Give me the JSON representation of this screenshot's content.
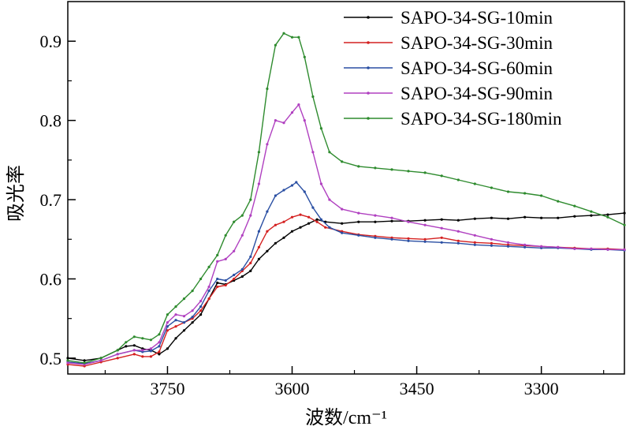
{
  "chart_data": {
    "type": "line",
    "title": "",
    "xlabel": "波数/cm⁻¹",
    "ylabel": "吸光率",
    "x_reversed": true,
    "xlim": [
      3870,
      3200
    ],
    "ylim": [
      0.48,
      0.95
    ],
    "x_ticks": [
      3750,
      3600,
      3450,
      3300
    ],
    "x_tick_labels": [
      "3750",
      "3600",
      "3450",
      "3300"
    ],
    "y_ticks": [
      0.5,
      0.6,
      0.7,
      0.8,
      0.9
    ],
    "y_tick_labels": [
      "0.5",
      "0.6",
      "0.7",
      "0.8",
      "0.9"
    ],
    "legend_position": "top-right",
    "series": [
      {
        "name": "SAPO-34-SG-10min",
        "color": "#000000",
        "points": [
          [
            3870,
            0.5
          ],
          [
            3850,
            0.497
          ],
          [
            3830,
            0.5
          ],
          [
            3810,
            0.51
          ],
          [
            3800,
            0.515
          ],
          [
            3790,
            0.516
          ],
          [
            3780,
            0.512
          ],
          [
            3770,
            0.51
          ],
          [
            3760,
            0.505
          ],
          [
            3750,
            0.512
          ],
          [
            3740,
            0.525
          ],
          [
            3730,
            0.535
          ],
          [
            3720,
            0.545
          ],
          [
            3710,
            0.555
          ],
          [
            3700,
            0.575
          ],
          [
            3690,
            0.595
          ],
          [
            3680,
            0.593
          ],
          [
            3670,
            0.598
          ],
          [
            3660,
            0.603
          ],
          [
            3650,
            0.61
          ],
          [
            3640,
            0.625
          ],
          [
            3630,
            0.635
          ],
          [
            3620,
            0.645
          ],
          [
            3610,
            0.652
          ],
          [
            3600,
            0.66
          ],
          [
            3590,
            0.665
          ],
          [
            3580,
            0.67
          ],
          [
            3570,
            0.675
          ],
          [
            3560,
            0.672
          ],
          [
            3540,
            0.67
          ],
          [
            3520,
            0.672
          ],
          [
            3500,
            0.672
          ],
          [
            3480,
            0.673
          ],
          [
            3460,
            0.673
          ],
          [
            3440,
            0.674
          ],
          [
            3420,
            0.675
          ],
          [
            3400,
            0.674
          ],
          [
            3380,
            0.676
          ],
          [
            3360,
            0.677
          ],
          [
            3340,
            0.676
          ],
          [
            3320,
            0.678
          ],
          [
            3300,
            0.677
          ],
          [
            3280,
            0.677
          ],
          [
            3260,
            0.679
          ],
          [
            3240,
            0.68
          ],
          [
            3220,
            0.681
          ],
          [
            3200,
            0.683
          ]
        ]
      },
      {
        "name": "SAPO-34-SG-30min",
        "color": "#d42020",
        "points": [
          [
            3870,
            0.492
          ],
          [
            3850,
            0.49
          ],
          [
            3830,
            0.495
          ],
          [
            3810,
            0.5
          ],
          [
            3790,
            0.505
          ],
          [
            3780,
            0.502
          ],
          [
            3770,
            0.502
          ],
          [
            3760,
            0.508
          ],
          [
            3750,
            0.535
          ],
          [
            3740,
            0.54
          ],
          [
            3730,
            0.545
          ],
          [
            3720,
            0.55
          ],
          [
            3710,
            0.56
          ],
          [
            3700,
            0.575
          ],
          [
            3690,
            0.59
          ],
          [
            3680,
            0.592
          ],
          [
            3670,
            0.6
          ],
          [
            3660,
            0.61
          ],
          [
            3650,
            0.62
          ],
          [
            3640,
            0.64
          ],
          [
            3630,
            0.66
          ],
          [
            3620,
            0.668
          ],
          [
            3610,
            0.672
          ],
          [
            3600,
            0.678
          ],
          [
            3590,
            0.681
          ],
          [
            3580,
            0.678
          ],
          [
            3570,
            0.672
          ],
          [
            3560,
            0.665
          ],
          [
            3540,
            0.66
          ],
          [
            3520,
            0.656
          ],
          [
            3500,
            0.654
          ],
          [
            3480,
            0.652
          ],
          [
            3460,
            0.651
          ],
          [
            3440,
            0.65
          ],
          [
            3420,
            0.652
          ],
          [
            3400,
            0.648
          ],
          [
            3380,
            0.646
          ],
          [
            3360,
            0.645
          ],
          [
            3340,
            0.643
          ],
          [
            3320,
            0.642
          ],
          [
            3300,
            0.641
          ],
          [
            3280,
            0.64
          ],
          [
            3260,
            0.639
          ],
          [
            3240,
            0.638
          ],
          [
            3220,
            0.638
          ],
          [
            3200,
            0.637
          ]
        ]
      },
      {
        "name": "SAPO-34-SG-60min",
        "color": "#2a4fa3",
        "points": [
          [
            3870,
            0.495
          ],
          [
            3850,
            0.493
          ],
          [
            3830,
            0.497
          ],
          [
            3810,
            0.505
          ],
          [
            3790,
            0.51
          ],
          [
            3780,
            0.508
          ],
          [
            3770,
            0.509
          ],
          [
            3760,
            0.515
          ],
          [
            3750,
            0.54
          ],
          [
            3740,
            0.548
          ],
          [
            3730,
            0.545
          ],
          [
            3720,
            0.552
          ],
          [
            3710,
            0.565
          ],
          [
            3700,
            0.585
          ],
          [
            3690,
            0.6
          ],
          [
            3680,
            0.598
          ],
          [
            3670,
            0.605
          ],
          [
            3660,
            0.612
          ],
          [
            3650,
            0.628
          ],
          [
            3640,
            0.66
          ],
          [
            3630,
            0.685
          ],
          [
            3620,
            0.705
          ],
          [
            3610,
            0.712
          ],
          [
            3600,
            0.718
          ],
          [
            3595,
            0.722
          ],
          [
            3585,
            0.71
          ],
          [
            3575,
            0.69
          ],
          [
            3565,
            0.675
          ],
          [
            3555,
            0.665
          ],
          [
            3540,
            0.658
          ],
          [
            3520,
            0.655
          ],
          [
            3500,
            0.652
          ],
          [
            3480,
            0.65
          ],
          [
            3460,
            0.648
          ],
          [
            3440,
            0.647
          ],
          [
            3420,
            0.646
          ],
          [
            3400,
            0.645
          ],
          [
            3380,
            0.643
          ],
          [
            3360,
            0.642
          ],
          [
            3340,
            0.641
          ],
          [
            3320,
            0.64
          ],
          [
            3300,
            0.639
          ],
          [
            3280,
            0.639
          ],
          [
            3260,
            0.638
          ],
          [
            3240,
            0.637
          ],
          [
            3220,
            0.637
          ],
          [
            3200,
            0.636
          ]
        ]
      },
      {
        "name": "SAPO-34-SG-90min",
        "color": "#b040c0",
        "points": [
          [
            3870,
            0.494
          ],
          [
            3850,
            0.492
          ],
          [
            3830,
            0.497
          ],
          [
            3810,
            0.505
          ],
          [
            3790,
            0.51
          ],
          [
            3780,
            0.51
          ],
          [
            3770,
            0.512
          ],
          [
            3760,
            0.52
          ],
          [
            3750,
            0.545
          ],
          [
            3740,
            0.555
          ],
          [
            3730,
            0.553
          ],
          [
            3720,
            0.56
          ],
          [
            3710,
            0.572
          ],
          [
            3700,
            0.59
          ],
          [
            3690,
            0.622
          ],
          [
            3680,
            0.625
          ],
          [
            3670,
            0.635
          ],
          [
            3660,
            0.655
          ],
          [
            3650,
            0.68
          ],
          [
            3640,
            0.72
          ],
          [
            3630,
            0.77
          ],
          [
            3620,
            0.8
          ],
          [
            3610,
            0.797
          ],
          [
            3600,
            0.81
          ],
          [
            3592,
            0.82
          ],
          [
            3585,
            0.8
          ],
          [
            3575,
            0.76
          ],
          [
            3565,
            0.72
          ],
          [
            3555,
            0.7
          ],
          [
            3540,
            0.688
          ],
          [
            3520,
            0.683
          ],
          [
            3500,
            0.68
          ],
          [
            3480,
            0.677
          ],
          [
            3460,
            0.672
          ],
          [
            3440,
            0.668
          ],
          [
            3420,
            0.664
          ],
          [
            3400,
            0.66
          ],
          [
            3380,
            0.655
          ],
          [
            3360,
            0.65
          ],
          [
            3340,
            0.646
          ],
          [
            3320,
            0.643
          ],
          [
            3300,
            0.641
          ],
          [
            3280,
            0.64
          ],
          [
            3260,
            0.638
          ],
          [
            3240,
            0.638
          ],
          [
            3220,
            0.637
          ],
          [
            3200,
            0.637
          ]
        ]
      },
      {
        "name": "SAPO-34-SG-180min",
        "color": "#2e8b2e",
        "points": [
          [
            3870,
            0.497
          ],
          [
            3850,
            0.494
          ],
          [
            3830,
            0.5
          ],
          [
            3810,
            0.51
          ],
          [
            3800,
            0.52
          ],
          [
            3790,
            0.527
          ],
          [
            3780,
            0.525
          ],
          [
            3770,
            0.523
          ],
          [
            3760,
            0.53
          ],
          [
            3750,
            0.555
          ],
          [
            3740,
            0.565
          ],
          [
            3730,
            0.575
          ],
          [
            3720,
            0.585
          ],
          [
            3710,
            0.6
          ],
          [
            3700,
            0.615
          ],
          [
            3690,
            0.63
          ],
          [
            3680,
            0.655
          ],
          [
            3670,
            0.672
          ],
          [
            3660,
            0.68
          ],
          [
            3650,
            0.7
          ],
          [
            3640,
            0.76
          ],
          [
            3630,
            0.84
          ],
          [
            3620,
            0.895
          ],
          [
            3610,
            0.91
          ],
          [
            3600,
            0.905
          ],
          [
            3592,
            0.905
          ],
          [
            3585,
            0.88
          ],
          [
            3575,
            0.83
          ],
          [
            3565,
            0.79
          ],
          [
            3555,
            0.76
          ],
          [
            3540,
            0.748
          ],
          [
            3520,
            0.742
          ],
          [
            3500,
            0.74
          ],
          [
            3480,
            0.738
          ],
          [
            3460,
            0.736
          ],
          [
            3440,
            0.734
          ],
          [
            3420,
            0.73
          ],
          [
            3400,
            0.725
          ],
          [
            3380,
            0.72
          ],
          [
            3360,
            0.715
          ],
          [
            3340,
            0.71
          ],
          [
            3320,
            0.708
          ],
          [
            3300,
            0.705
          ],
          [
            3280,
            0.698
          ],
          [
            3260,
            0.692
          ],
          [
            3240,
            0.685
          ],
          [
            3220,
            0.678
          ],
          [
            3200,
            0.668
          ]
        ]
      }
    ]
  }
}
